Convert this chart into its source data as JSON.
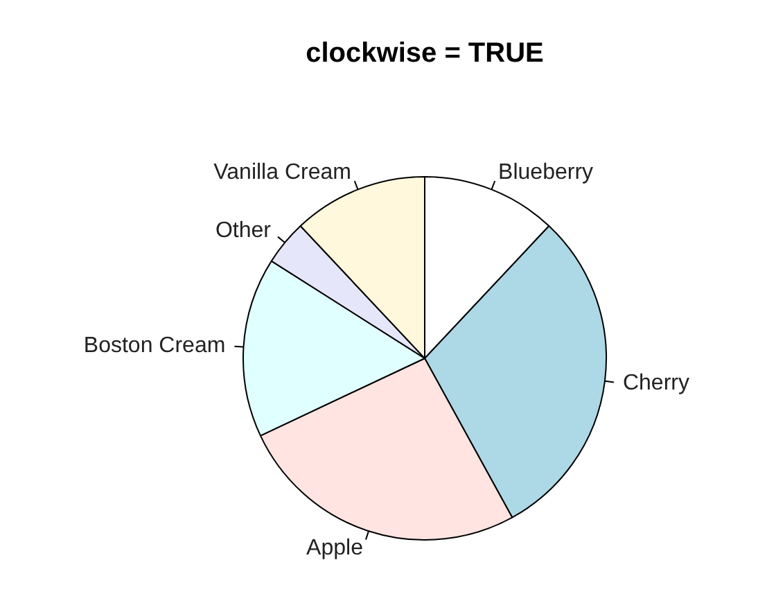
{
  "chart_data": {
    "type": "pie",
    "title": "clockwise = TRUE",
    "categories": [
      "Blueberry",
      "Cherry",
      "Apple",
      "Boston Cream",
      "Other",
      "Vanilla Cream"
    ],
    "values": [
      12,
      30,
      26,
      16,
      4,
      12
    ],
    "colors": [
      "#ffffff",
      "#add8e6",
      "#ffe4e1",
      "#e0ffff",
      "#e6e6fa",
      "#fff8dc"
    ]
  }
}
